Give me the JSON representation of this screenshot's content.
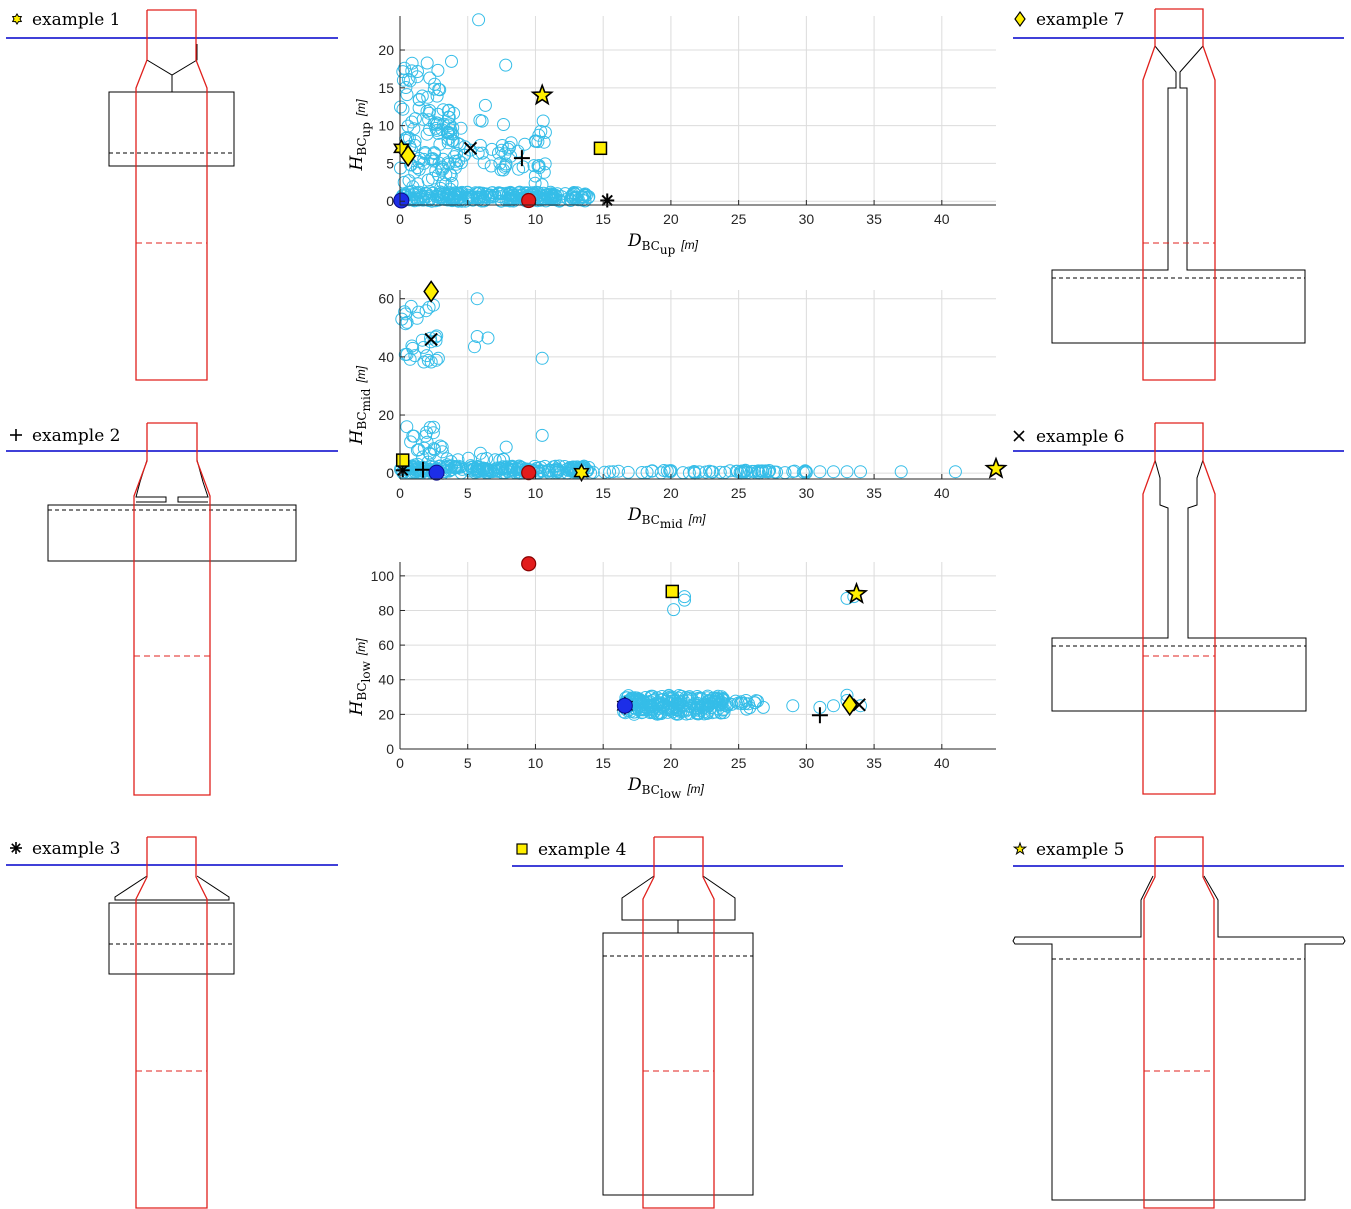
{
  "examples": [
    {
      "id": 1,
      "label": "example 1",
      "marker": "hexstar"
    },
    {
      "id": 2,
      "label": "example 2",
      "marker": "plus"
    },
    {
      "id": 3,
      "label": "example 3",
      "marker": "asterisk"
    },
    {
      "id": 4,
      "label": "example 4",
      "marker": "square"
    },
    {
      "id": 5,
      "label": "example 5",
      "marker": "pentagram"
    },
    {
      "id": 6,
      "label": "example 6",
      "marker": "cross"
    },
    {
      "id": 7,
      "label": "example 7",
      "marker": "diamond"
    }
  ],
  "colors": {
    "cloud": "#35bde8",
    "highlight": "#ffef00",
    "water_line": "#0000cc",
    "pile": "#e0201c",
    "structure": "#000000",
    "red_dot": "#e21c1c",
    "blue_dot": "#1c2ee8",
    "grid": "#dcdcdc"
  },
  "chart_data": [
    {
      "type": "scatter",
      "xlabel_main": "D",
      "xlabel_sub": "BC",
      "xlabel_subsub": "up",
      "xlabel_unit": "[m]",
      "ylabel_main": "H",
      "ylabel_sub": "BC",
      "ylabel_subsub": "up",
      "ylabel_unit": "[m]",
      "xlim": [
        0,
        44
      ],
      "ylim": [
        -0.5,
        24.5
      ],
      "xticks": [
        0,
        5,
        10,
        15,
        20,
        25,
        30,
        35,
        40
      ],
      "yticks": [
        0,
        5,
        10,
        15,
        20
      ],
      "special": [
        {
          "example": 1,
          "x": 0.1,
          "y": 7.0
        },
        {
          "example": 2,
          "x": 9.0,
          "y": 5.7
        },
        {
          "example": 3,
          "x": 15.3,
          "y": 0.1
        },
        {
          "example": 4,
          "x": 14.8,
          "y": 7.0
        },
        {
          "example": 5,
          "x": 10.5,
          "y": 14.0
        },
        {
          "example": 6,
          "x": 5.2,
          "y": 7.0
        },
        {
          "example": 7,
          "x": 0.6,
          "y": 6.0
        },
        {
          "marker": "red_dot",
          "x": 9.5,
          "y": 0.1
        },
        {
          "marker": "blue_dot",
          "x": 0.1,
          "y": 0.1
        }
      ]
    },
    {
      "type": "scatter",
      "xlabel_main": "D",
      "xlabel_sub": "BC",
      "xlabel_subsub": "mid",
      "xlabel_unit": "[m]",
      "ylabel_main": "H",
      "ylabel_sub": "BC",
      "ylabel_subsub": "mid",
      "ylabel_unit": "[m]",
      "xlim": [
        0,
        44
      ],
      "ylim": [
        -2,
        63
      ],
      "xticks": [
        0,
        5,
        10,
        15,
        20,
        25,
        30,
        35,
        40
      ],
      "yticks": [
        0,
        20,
        40,
        60
      ],
      "special": [
        {
          "example": 1,
          "x": 13.4,
          "y": 0.2
        },
        {
          "example": 2,
          "x": 1.7,
          "y": 1.2
        },
        {
          "example": 3,
          "x": 0.2,
          "y": 1.0
        },
        {
          "example": 4,
          "x": 0.2,
          "y": 4.5
        },
        {
          "example": 5,
          "x": 44.0,
          "y": 1.5
        },
        {
          "example": 6,
          "x": 2.3,
          "y": 46.0
        },
        {
          "example": 7,
          "x": 2.3,
          "y": 62.5
        },
        {
          "marker": "red_dot",
          "x": 9.5,
          "y": 0.2
        },
        {
          "marker": "blue_dot",
          "x": 2.7,
          "y": 0.2
        }
      ]
    },
    {
      "type": "scatter",
      "xlabel_main": "D",
      "xlabel_sub": "BC",
      "xlabel_subsub": "low",
      "xlabel_unit": "[m]",
      "ylabel_main": "H",
      "ylabel_sub": "BC",
      "ylabel_subsub": "low",
      "ylabel_unit": "[m]",
      "xlim": [
        0,
        44
      ],
      "ylim": [
        0,
        108
      ],
      "xticks": [
        0,
        5,
        10,
        15,
        20,
        25,
        30,
        35,
        40
      ],
      "yticks": [
        0,
        20,
        40,
        60,
        80,
        100
      ],
      "special": [
        {
          "example": 1,
          "x": 16.6,
          "y": 25.0
        },
        {
          "example": 2,
          "x": 31.0,
          "y": 19.5
        },
        {
          "example": 3,
          "x": 16.6,
          "y": 25.5
        },
        {
          "example": 4,
          "x": 20.1,
          "y": 91.0
        },
        {
          "example": 5,
          "x": 33.7,
          "y": 89.5
        },
        {
          "example": 6,
          "x": 33.9,
          "y": 25.5
        },
        {
          "example": 7,
          "x": 33.2,
          "y": 25.5
        },
        {
          "marker": "red_dot",
          "x": 9.5,
          "y": 107.0
        },
        {
          "marker": "blue_dot",
          "x": 16.6,
          "y": 25.0
        }
      ]
    }
  ]
}
